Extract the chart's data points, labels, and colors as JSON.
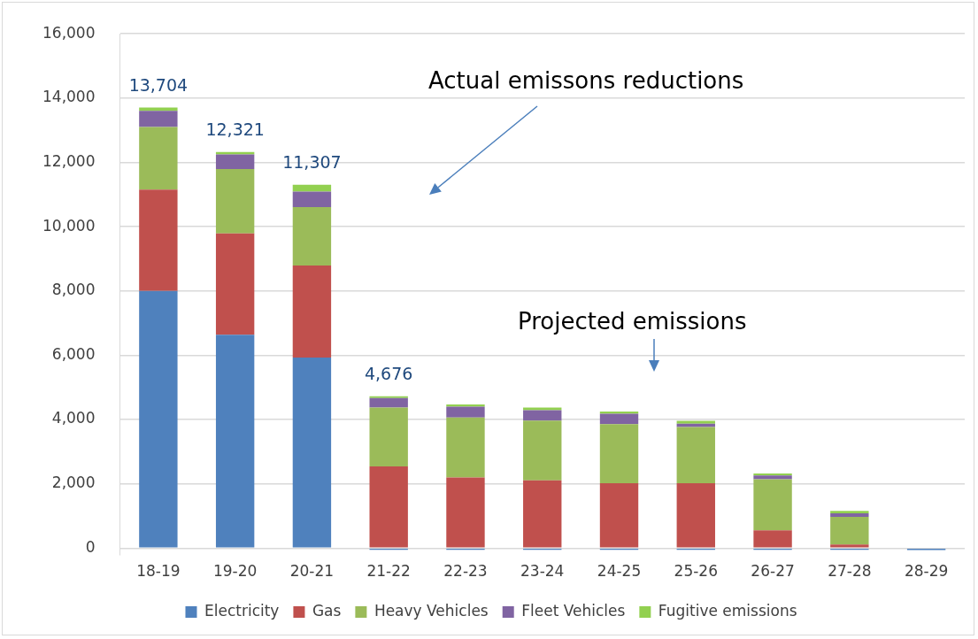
{
  "chart_data": {
    "type": "bar",
    "stacked": true,
    "categories": [
      "18-19",
      "19-20",
      "20-21",
      "21-22",
      "22-23",
      "23-24",
      "24-25",
      "25-26",
      "26-27",
      "27-28",
      "28-29"
    ],
    "series": [
      {
        "name": "Electricity",
        "color": "#4f81bd",
        "values": [
          8000,
          6640,
          5930,
          -50,
          -50,
          -50,
          -50,
          -50,
          -50,
          -50,
          -60
        ]
      },
      {
        "name": "Gas",
        "color": "#c0504d",
        "values": [
          3150,
          3150,
          2860,
          2540,
          2200,
          2110,
          2020,
          2020,
          550,
          110,
          0
        ]
      },
      {
        "name": "Heavy Vehicles",
        "color": "#9bbb59",
        "values": [
          1950,
          2000,
          1820,
          1830,
          1860,
          1860,
          1840,
          1750,
          1590,
          860,
          0
        ]
      },
      {
        "name": "Fleet Vehicles",
        "color": "#8064a2",
        "values": [
          500,
          460,
          480,
          300,
          340,
          320,
          320,
          100,
          120,
          110,
          0
        ]
      },
      {
        "name": "Fugitive emissions",
        "color": "#92d050",
        "values": [
          104,
          71,
          217,
          56,
          70,
          80,
          70,
          90,
          60,
          80,
          0
        ]
      }
    ],
    "totals": [
      "13,704",
      "12,321",
      "11,307",
      "4,676",
      null,
      null,
      null,
      null,
      null,
      null,
      null
    ],
    "ylim": [
      -200,
      16000
    ],
    "yticks": [
      0,
      {
        "value": 2000,
        "label": "2,000"
      },
      {
        "value": 4000,
        "label": "4,000"
      },
      {
        "value": 6000,
        "label": "6,000"
      },
      {
        "value": 8000,
        "label": "8,000"
      },
      {
        "value": 10000,
        "label": "10,000"
      },
      {
        "value": 12000,
        "label": "12,000"
      },
      {
        "value": 14000,
        "label": "14,000"
      },
      {
        "value": 16000,
        "label": "16,000"
      }
    ],
    "grid": "y",
    "legend": "bottom",
    "annotations": [
      "Actual emissons reductions",
      "Projected emissions"
    ]
  }
}
